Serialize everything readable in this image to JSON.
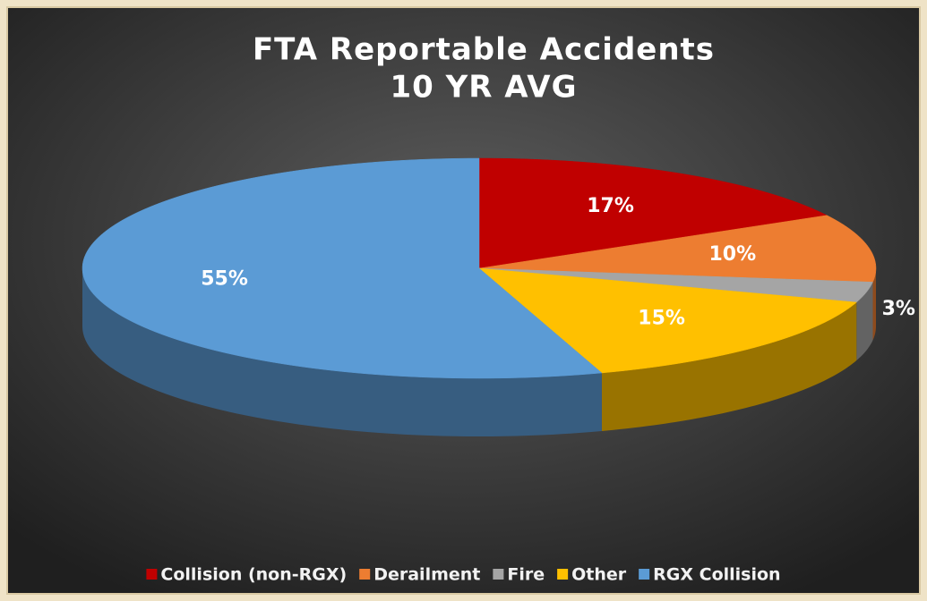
{
  "chart_data": {
    "type": "pie3d",
    "title": "FTA Reportable Accidents",
    "subtitle": "10 YR AVG",
    "categories": [
      "Collision (non-RGX)",
      "Derailment",
      "Fire",
      "Other",
      "RGX Collision"
    ],
    "values": [
      17,
      10,
      3,
      15,
      55
    ],
    "value_labels": [
      "17%",
      "10%",
      "3%",
      "15%",
      "55%"
    ],
    "colors": [
      "#c00000",
      "#ed7d31",
      "#a5a5a5",
      "#ffc000",
      "#5b9bd5"
    ],
    "legend": "bottom"
  }
}
